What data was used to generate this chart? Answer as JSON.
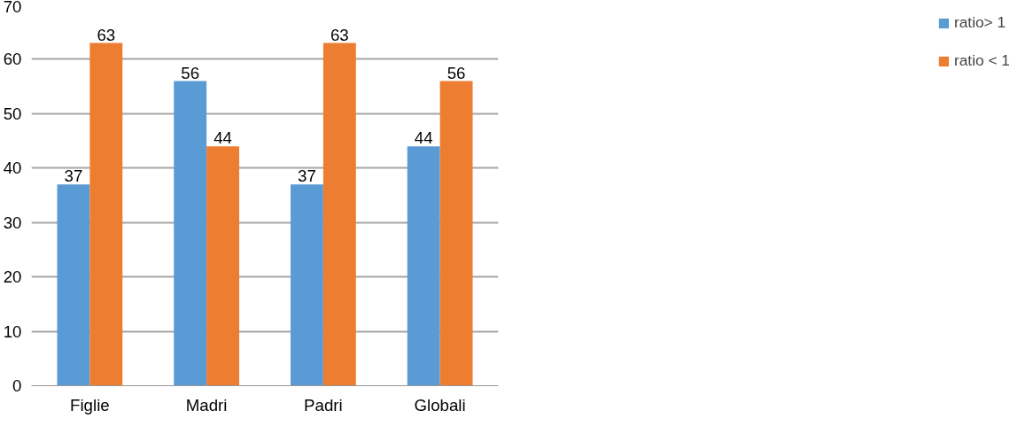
{
  "chart_data": {
    "type": "bar",
    "categories": [
      "Figlie",
      "Madri",
      "Padri",
      "Globali"
    ],
    "series": [
      {
        "name": "ratio> 1",
        "color": "#5b9bd5",
        "values": [
          37,
          56,
          37,
          44
        ]
      },
      {
        "name": "ratio < 1",
        "color": "#ed7d31",
        "values": [
          63,
          44,
          63,
          56
        ]
      }
    ],
    "ylim": [
      0,
      70
    ],
    "yticks": [
      0,
      10,
      20,
      30,
      40,
      50,
      60,
      70
    ],
    "grid": "y",
    "legend": "right",
    "data_labels": true
  }
}
